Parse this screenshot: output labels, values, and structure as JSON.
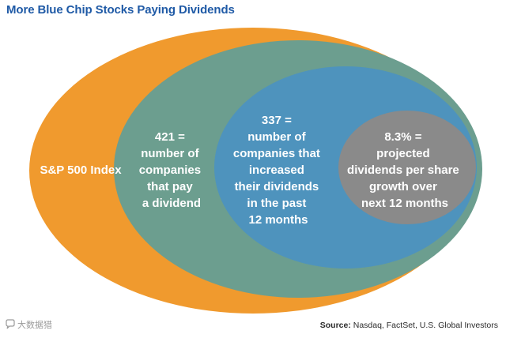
{
  "title": "More Blue Chip Stocks Paying Dividends",
  "colors": {
    "title": "#1f5aa6",
    "orange": "#f09a2e",
    "green": "#6c9e8f",
    "blue": "#4e93bd",
    "gray": "#8a8a8a",
    "text": "#ffffff"
  },
  "diagram": {
    "outer": {
      "label": "S&P 500 Index"
    },
    "second": {
      "lines": [
        "421 =",
        "number of",
        "companies",
        "that pay",
        "a dividend"
      ]
    },
    "third": {
      "lines": [
        "337 =",
        "number of",
        "companies that",
        "increased",
        "their dividends",
        "in the past",
        "12 months"
      ]
    },
    "inner": {
      "lines": [
        "8.3% =",
        "projected",
        "dividends per share",
        "growth over",
        "next 12 months"
      ]
    }
  },
  "source": {
    "lead": "Source:",
    "text": " Nasdaq, FactSet, U.S. Global Investors"
  },
  "watermark": {
    "text": "大数据猎",
    "icon": "chat-bubble-icon"
  }
}
